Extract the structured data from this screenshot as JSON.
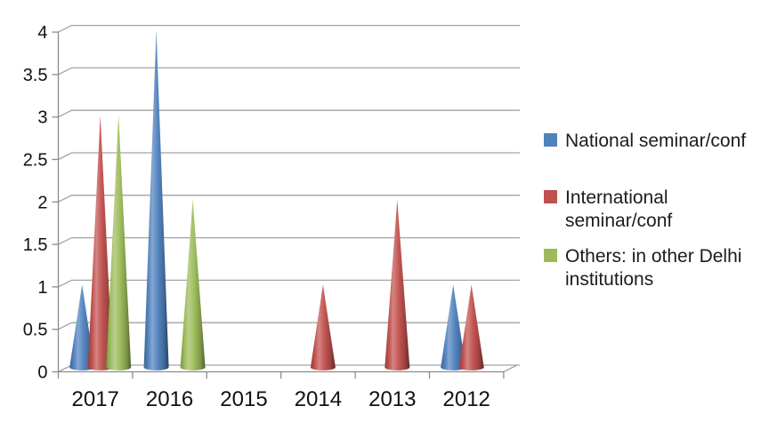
{
  "background_color": "#ffffff",
  "chart_data": {
    "type": "bar",
    "subtype": "3d-cone-pyramid",
    "title": "",
    "categories": [
      "2017",
      "2016",
      "2015",
      "2014",
      "2013",
      "2012"
    ],
    "series": [
      {
        "name": "National seminar/conf",
        "color": "#4f81bd",
        "values": [
          1,
          4,
          0,
          0,
          0,
          1
        ]
      },
      {
        "name": "International seminar/conf",
        "color": "#c0504d",
        "values": [
          3,
          0,
          0,
          1,
          2,
          1
        ]
      },
      {
        "name": "Others: in other Delhi institutions",
        "color": "#9bbb59",
        "values": [
          3,
          2,
          0,
          0,
          0,
          0
        ]
      }
    ],
    "ylim": [
      0,
      4
    ],
    "ytick_step": 0.5,
    "yticks": [
      "0",
      "0.5",
      "1",
      "1.5",
      "2",
      "2.5",
      "3",
      "3.5",
      "4"
    ],
    "grid": true,
    "legend_position": "right",
    "axis_color": "#8a8a8a",
    "grid_color": "#a3a3a3",
    "tick_label_color": "#111111"
  },
  "legend": {
    "swatch_icon": "color-square"
  }
}
